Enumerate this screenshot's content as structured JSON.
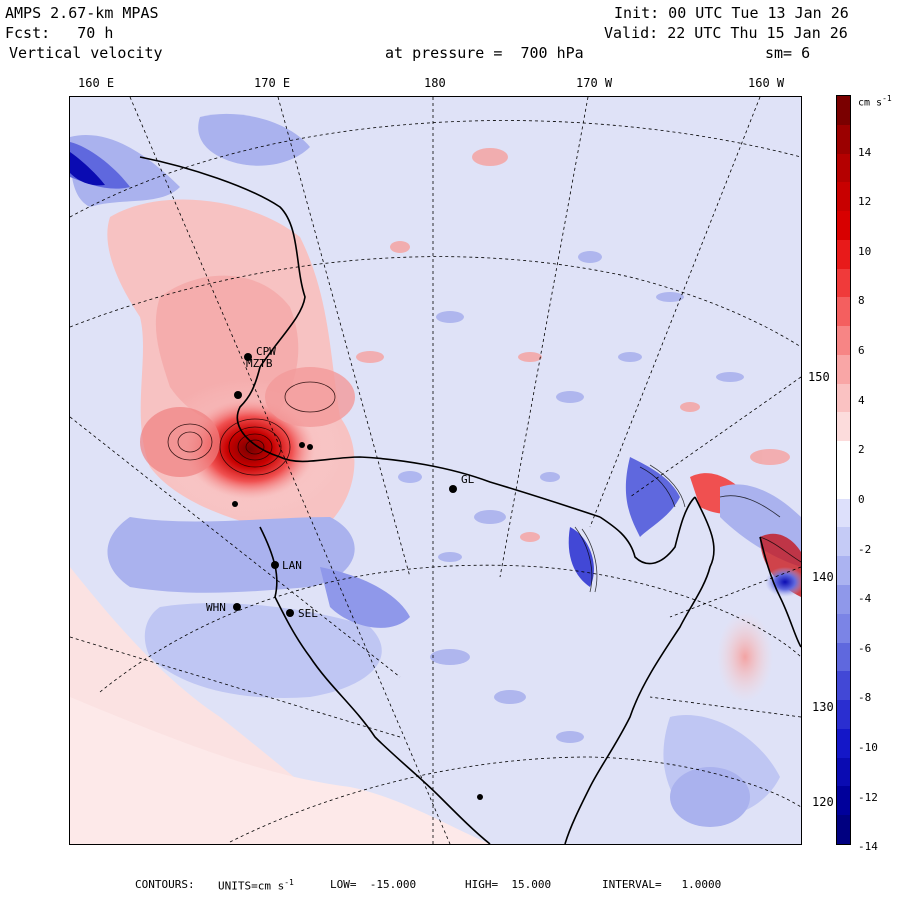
{
  "header": {
    "model": "AMPS 2.67-km MPAS",
    "fcst": "Fcst:   70 h",
    "field": "Vertical velocity",
    "init": "Init: 00 UTC Tue 13 Jan 26",
    "valid": "Valid: 22 UTC Thu 15 Jan 26",
    "pressure": "at pressure =  700 hPa",
    "smoothing": "sm= 6"
  },
  "longitude_labels_top": [
    "160 E",
    "170 E",
    "180",
    "170 W",
    "160 W"
  ],
  "longitude_labels_right": [
    "150 W",
    "140 W",
    "130 W",
    "120 W"
  ],
  "stations": [
    "CPW",
    "MZTB",
    "LAN",
    "WHN",
    "SEL",
    "GL"
  ],
  "colorbar": {
    "unit": "cm s",
    "unit_exp": "-1",
    "ticks": [
      "14",
      "12",
      "10",
      "8",
      "6",
      "4",
      "2",
      "0",
      "-2",
      "-4",
      "-6",
      "-8",
      "-10",
      "-12",
      "-14"
    ],
    "colors": [
      "#7a0000",
      "#9b0000",
      "#b40000",
      "#c80000",
      "#d80000",
      "#e81a1a",
      "#f03a3a",
      "#f45f5f",
      "#f78585",
      "#f9a6a6",
      "#fac2c2",
      "#fcdcdc",
      "#ffffff",
      "#ffffff",
      "#dde0fb",
      "#c5cbf6",
      "#abb3f1",
      "#8f98ea",
      "#7b84e6",
      "#5f68de",
      "#4248d6",
      "#2a2ed0",
      "#1417c8",
      "#0a0bb2",
      "#00009b",
      "#000080"
    ]
  },
  "footer": {
    "contours": "CONTOURS:",
    "units": "UNITS=cm s",
    "units_exp": "-1",
    "low": "LOW=  -15.000",
    "high": "HIGH=  15.000",
    "interval": "INTERVAL=   1.0000"
  },
  "colors": {
    "updraft": "#f4a8a8",
    "updraft_strong": "#c80000",
    "downdraft": "#aab2ee",
    "background_sea": "#dfe2f7",
    "pale_pink": "#fbe2e2"
  }
}
